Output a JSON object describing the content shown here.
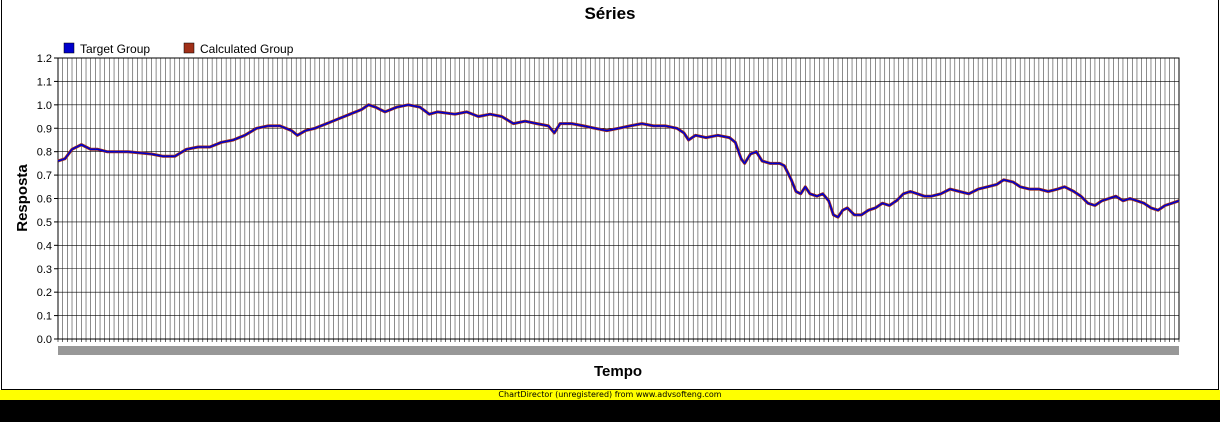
{
  "chart_data": {
    "type": "line",
    "title": "Séries",
    "xlabel": "Tempo",
    "ylabel": "Resposta",
    "ylim": [
      0,
      1.2
    ],
    "yticks": [
      "0.0",
      "0.1",
      "0.2",
      "0.3",
      "0.4",
      "0.5",
      "0.6",
      "0.7",
      "0.8",
      "0.9",
      "1.0",
      "1.1",
      "1.2"
    ],
    "grid": true,
    "legend_position": "top-left",
    "series": [
      {
        "name": "Target Group",
        "color": "#0000cc",
        "keypoints": [
          [
            0,
            0.76
          ],
          [
            6,
            0.77
          ],
          [
            12,
            0.81
          ],
          [
            20,
            0.83
          ],
          [
            28,
            0.81
          ],
          [
            34,
            0.81
          ],
          [
            42,
            0.8
          ],
          [
            60,
            0.8
          ],
          [
            80,
            0.79
          ],
          [
            90,
            0.78
          ],
          [
            100,
            0.78
          ],
          [
            110,
            0.81
          ],
          [
            120,
            0.82
          ],
          [
            130,
            0.82
          ],
          [
            140,
            0.84
          ],
          [
            150,
            0.85
          ],
          [
            160,
            0.87
          ],
          [
            170,
            0.9
          ],
          [
            180,
            0.91
          ],
          [
            190,
            0.91
          ],
          [
            200,
            0.89
          ],
          [
            205,
            0.87
          ],
          [
            212,
            0.89
          ],
          [
            220,
            0.9
          ],
          [
            230,
            0.92
          ],
          [
            240,
            0.94
          ],
          [
            250,
            0.96
          ],
          [
            260,
            0.98
          ],
          [
            266,
            1.0
          ],
          [
            272,
            0.99
          ],
          [
            280,
            0.97
          ],
          [
            290,
            0.99
          ],
          [
            300,
            1.0
          ],
          [
            310,
            0.99
          ],
          [
            318,
            0.96
          ],
          [
            325,
            0.97
          ],
          [
            340,
            0.96
          ],
          [
            350,
            0.97
          ],
          [
            360,
            0.95
          ],
          [
            370,
            0.96
          ],
          [
            380,
            0.95
          ],
          [
            390,
            0.92
          ],
          [
            400,
            0.93
          ],
          [
            410,
            0.92
          ],
          [
            420,
            0.91
          ],
          [
            425,
            0.88
          ],
          [
            430,
            0.92
          ],
          [
            440,
            0.92
          ],
          [
            450,
            0.91
          ],
          [
            460,
            0.9
          ],
          [
            470,
            0.89
          ],
          [
            480,
            0.9
          ],
          [
            490,
            0.91
          ],
          [
            500,
            0.92
          ],
          [
            510,
            0.91
          ],
          [
            520,
            0.91
          ],
          [
            530,
            0.9
          ],
          [
            536,
            0.88
          ],
          [
            540,
            0.85
          ],
          [
            546,
            0.87
          ],
          [
            555,
            0.86
          ],
          [
            565,
            0.87
          ],
          [
            575,
            0.86
          ],
          [
            580,
            0.84
          ],
          [
            585,
            0.77
          ],
          [
            588,
            0.75
          ],
          [
            593,
            0.79
          ],
          [
            598,
            0.8
          ],
          [
            603,
            0.76
          ],
          [
            610,
            0.75
          ],
          [
            618,
            0.75
          ],
          [
            622,
            0.74
          ],
          [
            628,
            0.68
          ],
          [
            632,
            0.63
          ],
          [
            636,
            0.62
          ],
          [
            640,
            0.65
          ],
          [
            644,
            0.62
          ],
          [
            650,
            0.61
          ],
          [
            655,
            0.62
          ],
          [
            660,
            0.59
          ],
          [
            664,
            0.53
          ],
          [
            668,
            0.52
          ],
          [
            672,
            0.55
          ],
          [
            676,
            0.56
          ],
          [
            682,
            0.53
          ],
          [
            688,
            0.53
          ],
          [
            694,
            0.55
          ],
          [
            700,
            0.56
          ],
          [
            706,
            0.58
          ],
          [
            712,
            0.57
          ],
          [
            718,
            0.59
          ],
          [
            724,
            0.62
          ],
          [
            730,
            0.63
          ],
          [
            736,
            0.62
          ],
          [
            742,
            0.61
          ],
          [
            748,
            0.61
          ],
          [
            756,
            0.62
          ],
          [
            764,
            0.64
          ],
          [
            772,
            0.63
          ],
          [
            780,
            0.62
          ],
          [
            788,
            0.64
          ],
          [
            796,
            0.65
          ],
          [
            804,
            0.66
          ],
          [
            810,
            0.68
          ],
          [
            818,
            0.67
          ],
          [
            824,
            0.65
          ],
          [
            832,
            0.64
          ],
          [
            840,
            0.64
          ],
          [
            848,
            0.63
          ],
          [
            856,
            0.64
          ],
          [
            862,
            0.65
          ],
          [
            870,
            0.63
          ],
          [
            876,
            0.61
          ],
          [
            882,
            0.58
          ],
          [
            888,
            0.57
          ],
          [
            894,
            0.59
          ],
          [
            900,
            0.6
          ],
          [
            906,
            0.61
          ],
          [
            912,
            0.59
          ],
          [
            918,
            0.6
          ],
          [
            924,
            0.59
          ],
          [
            930,
            0.58
          ],
          [
            936,
            0.56
          ],
          [
            942,
            0.55
          ],
          [
            948,
            0.57
          ],
          [
            954,
            0.58
          ],
          [
            960,
            0.59
          ]
        ]
      },
      {
        "name": "Calculated Group",
        "color": "#a03018"
      }
    ]
  },
  "footer": {
    "text": "ChartDirector (unregistered) from www.advsofteng.com"
  }
}
